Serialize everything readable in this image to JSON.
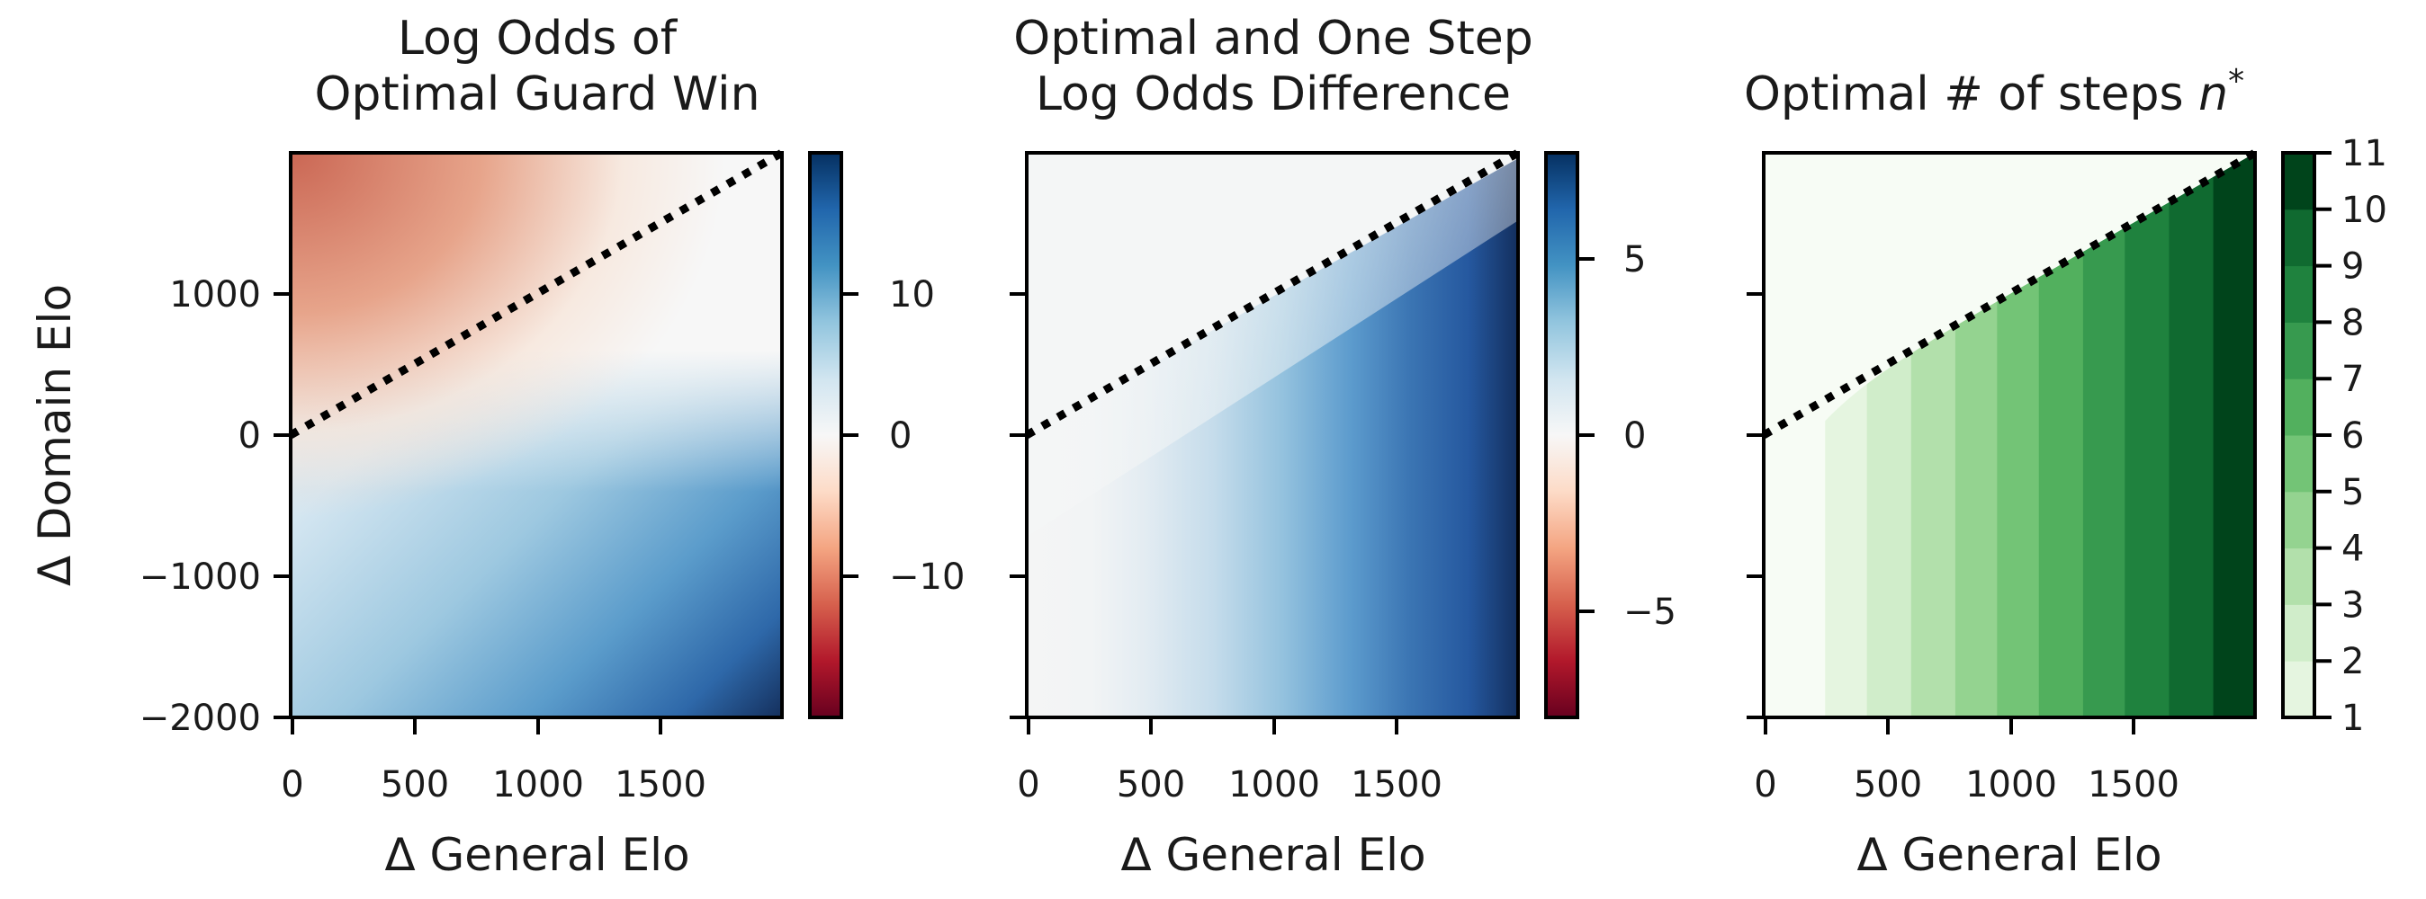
{
  "chart_data": [
    {
      "type": "heatmap",
      "title_lines": [
        "Log Odds of",
        "Optimal Guard Win"
      ],
      "xlabel": "Δ General Elo",
      "ylabel": "Δ Domain Elo",
      "xlim": [
        0,
        2000
      ],
      "ylim": [
        -2000,
        2000
      ],
      "xticks": [
        0,
        500,
        1000,
        1500
      ],
      "xtick_labels": [
        "0",
        "500",
        "1000",
        "1500"
      ],
      "yticks": [
        1000,
        0,
        -1000,
        -2000
      ],
      "ytick_labels": [
        "1000",
        "0",
        "−1000",
        "−2000"
      ],
      "colormap": "RdBu",
      "colorbar": {
        "range": [
          -18,
          18
        ],
        "ticks": [
          10,
          0,
          -10
        ],
        "tick_labels": [
          "10",
          "0",
          "−10"
        ]
      },
      "reference_line": {
        "style": "dotted",
        "color": "#000000",
        "from": [
          0,
          0
        ],
        "to": [
          2000,
          2000
        ]
      },
      "corner_values": {
        "top_left": -11,
        "top_right": 0,
        "bottom_left": 9,
        "bottom_right": 18
      }
    },
    {
      "type": "heatmap",
      "title_lines": [
        "Optimal and One Step",
        "Log Odds Difference"
      ],
      "xlabel": "Δ General Elo",
      "xlim": [
        0,
        2000
      ],
      "ylim": [
        -2000,
        2000
      ],
      "xticks": [
        0,
        500,
        1000,
        1500
      ],
      "xtick_labels": [
        "0",
        "500",
        "1000",
        "1500"
      ],
      "yticks": [
        1000,
        0,
        -1000,
        -2000
      ],
      "colormap": "RdBu",
      "colorbar": {
        "range": [
          -8,
          8
        ],
        "ticks": [
          5,
          0,
          -5
        ],
        "tick_labels": [
          "5",
          "0",
          "−5"
        ]
      },
      "reference_line": {
        "style": "dotted",
        "color": "#000000",
        "from": [
          0,
          0
        ],
        "to": [
          2000,
          2000
        ]
      },
      "value_range_by_x": {
        "x": [
          0,
          250,
          500,
          1000,
          1500,
          2000
        ],
        "value": [
          0,
          0,
          0.8,
          3.0,
          5.6,
          8.0
        ]
      }
    },
    {
      "type": "heatmap",
      "title": "Optimal # of steps ",
      "title_symbol": "n",
      "title_superscript": "*",
      "xlabel": "Δ General Elo",
      "xlim": [
        0,
        2000
      ],
      "ylim": [
        -2000,
        2000
      ],
      "xticks": [
        0,
        500,
        1000,
        1500
      ],
      "xtick_labels": [
        "0",
        "500",
        "1000",
        "1500"
      ],
      "yticks": [
        1000,
        0,
        -1000,
        -2000
      ],
      "colormap": "Greens",
      "colorbar": {
        "range": [
          1,
          11
        ],
        "ticks": [
          11,
          10,
          9,
          8,
          7,
          6,
          5,
          4,
          3,
          2,
          1
        ],
        "tick_labels": [
          "11",
          "10",
          "9",
          "8",
          "7",
          "6",
          "5",
          "4",
          "3",
          "2",
          "1"
        ]
      },
      "reference_line": {
        "style": "dotted",
        "color": "#000000",
        "from": [
          0,
          0
        ],
        "to": [
          2000,
          2000
        ]
      },
      "step_boundaries_x": [
        250,
        420,
        600,
        780,
        950,
        1120,
        1300,
        1470,
        1650,
        1830
      ],
      "values": [
        1,
        2,
        3,
        4,
        5,
        6,
        7,
        8,
        9,
        10,
        11
      ]
    }
  ]
}
